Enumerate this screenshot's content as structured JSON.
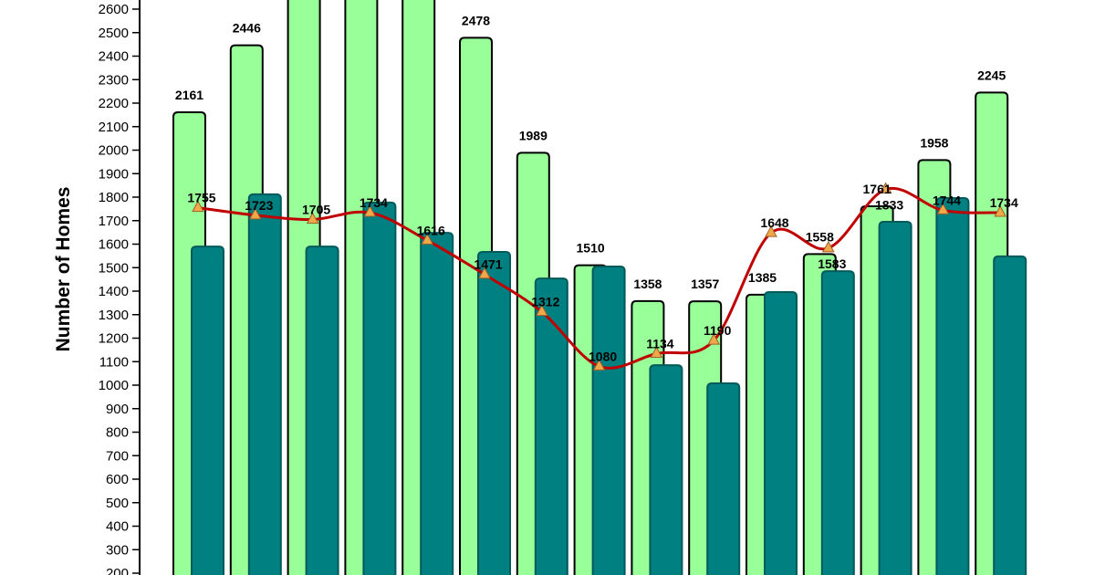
{
  "chart_data": {
    "type": "bar",
    "ylabel": "Number of Homes",
    "xlabel": "",
    "yticks": [
      200,
      300,
      400,
      500,
      600,
      700,
      800,
      900,
      1000,
      1100,
      1200,
      1300,
      1400,
      1500,
      1600,
      1700,
      1800,
      1900,
      2000,
      2100,
      2200,
      2300,
      2400,
      2500,
      2600
    ],
    "ylim_visible": [
      200,
      2600
    ],
    "grid": false,
    "colors": {
      "series1": "#99FF99",
      "series2": "#008080",
      "line": "#C00000",
      "marker": "#F0A848"
    },
    "series": [
      {
        "type": "bar",
        "values": [
          2161,
          2446,
          null,
          null,
          null,
          2478,
          1989,
          1510,
          1358,
          1357,
          1385,
          1558,
          1761,
          1958,
          2245
        ],
        "labels_shown": true
      },
      {
        "type": "bar",
        "values": [
          1590,
          1812,
          1590,
          1777,
          1648,
          1567,
          1454,
          1505,
          1085,
          1008,
          1396,
          1485,
          1695,
          1796,
          1548
        ],
        "labels_shown": false
      },
      {
        "type": "line",
        "smooth": true,
        "marker": "triangle",
        "values": [
          1755,
          1723,
          1705,
          1734,
          1616,
          1471,
          1312,
          1080,
          1134,
          1190,
          1648,
          1583,
          1833,
          1744,
          1734
        ],
        "labels_shown": true
      }
    ]
  }
}
